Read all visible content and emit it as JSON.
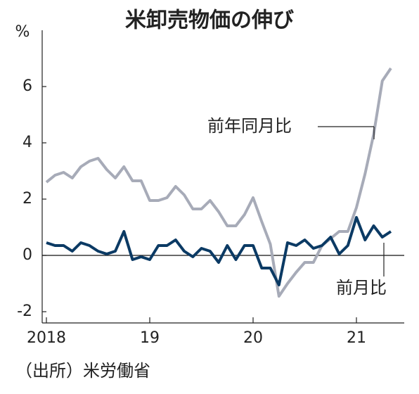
{
  "chart_data": {
    "type": "line",
    "title": "米卸売物価の伸び",
    "y_unit": "%",
    "source": "（出所）米労働省",
    "categories": [
      "2018",
      null,
      null,
      null,
      null,
      null,
      null,
      null,
      null,
      null,
      null,
      null,
      "19",
      null,
      null,
      null,
      null,
      null,
      null,
      null,
      null,
      null,
      null,
      null,
      "20",
      null,
      null,
      null,
      null,
      null,
      null,
      null,
      null,
      null,
      null,
      null,
      "21",
      null,
      null,
      null,
      null
    ],
    "series": [
      {
        "name": "前年同月比",
        "color": "#a7abb8",
        "values": [
          2.6,
          2.85,
          2.95,
          2.75,
          3.15,
          3.35,
          3.45,
          3.05,
          2.75,
          3.15,
          2.65,
          2.65,
          1.95,
          1.95,
          2.05,
          2.45,
          2.15,
          1.65,
          1.65,
          1.95,
          1.55,
          1.05,
          1.05,
          1.45,
          2.05,
          1.2,
          0.4,
          -1.45,
          -1.0,
          -0.6,
          -0.25,
          -0.25,
          0.35,
          0.6,
          0.85,
          0.85,
          1.7,
          2.9,
          4.3,
          6.2,
          6.65
        ]
      },
      {
        "name": "前月比",
        "color": "#0b3a64",
        "values": [
          0.45,
          0.35,
          0.35,
          0.15,
          0.45,
          0.35,
          0.15,
          0.05,
          0.15,
          0.85,
          -0.15,
          -0.05,
          -0.15,
          0.35,
          0.35,
          0.55,
          0.15,
          -0.05,
          0.25,
          0.15,
          -0.25,
          0.35,
          -0.15,
          0.35,
          0.35,
          -0.45,
          -0.45,
          -1.05,
          0.45,
          0.35,
          0.55,
          0.25,
          0.35,
          0.65,
          0.05,
          0.35,
          1.35,
          0.55,
          1.05,
          0.65,
          0.85
        ]
      }
    ],
    "ylim": [
      -2.4,
      8
    ],
    "yticks": [
      -2,
      0,
      2,
      4,
      6
    ]
  }
}
